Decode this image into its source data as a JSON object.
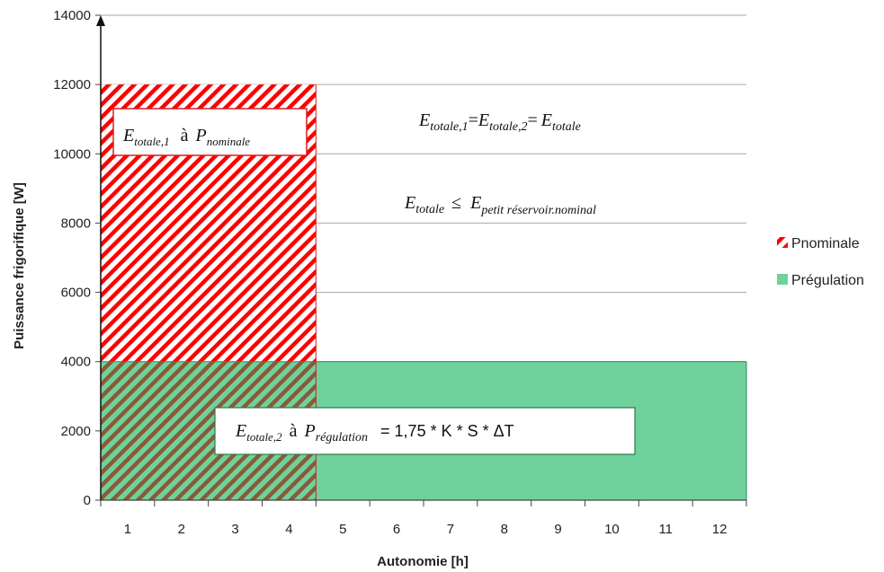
{
  "chart_data": {
    "type": "bar",
    "xlabel": "Autonomie [h]",
    "ylabel": "Puissance frigorifique [W]",
    "x_ticks": [
      "1",
      "2",
      "3",
      "4",
      "5",
      "6",
      "7",
      "8",
      "9",
      "10",
      "11",
      "12"
    ],
    "y_ticks": [
      "0",
      "2000",
      "4000",
      "6000",
      "8000",
      "10000",
      "12000",
      "14000"
    ],
    "ylim": [
      0,
      14000
    ],
    "xlim": [
      0.5,
      12.5
    ],
    "grid": true,
    "legend_position": "right",
    "series": [
      {
        "name": "Pnominale",
        "x_start": 0.5,
        "x_end": 4.5,
        "value": 12000,
        "color": "#ff0000",
        "pattern": "diagonal-hatch"
      },
      {
        "name": "Prégulation",
        "x_start": 0.5,
        "x_end": 12.5,
        "value": 4000,
        "color": "#6fd29c",
        "pattern": "solid"
      }
    ],
    "annotations": {
      "box1": {
        "E": "E",
        "E_sub": "totale,1",
        "a": "à",
        "P": "P",
        "P_sub": "nominale"
      },
      "eq1": {
        "E1": "E",
        "E1_sub": "totale,1",
        "eq1": "=",
        "E2": "E",
        "E2_sub": "totale,2",
        "eq2": "=",
        "E3": "E",
        "E3_sub": "totale"
      },
      "eq2": {
        "E1": "E",
        "E1_sub": "totale",
        "le": "≤",
        "E2": "E",
        "E2_sub": "petit réservoir.nominal"
      },
      "box2": {
        "E": "E",
        "E_sub": "totale,2",
        "a": "à",
        "P": "P",
        "P_sub": "régulation",
        "rhs": "=  1,75 * K * S * ΔT"
      }
    }
  }
}
